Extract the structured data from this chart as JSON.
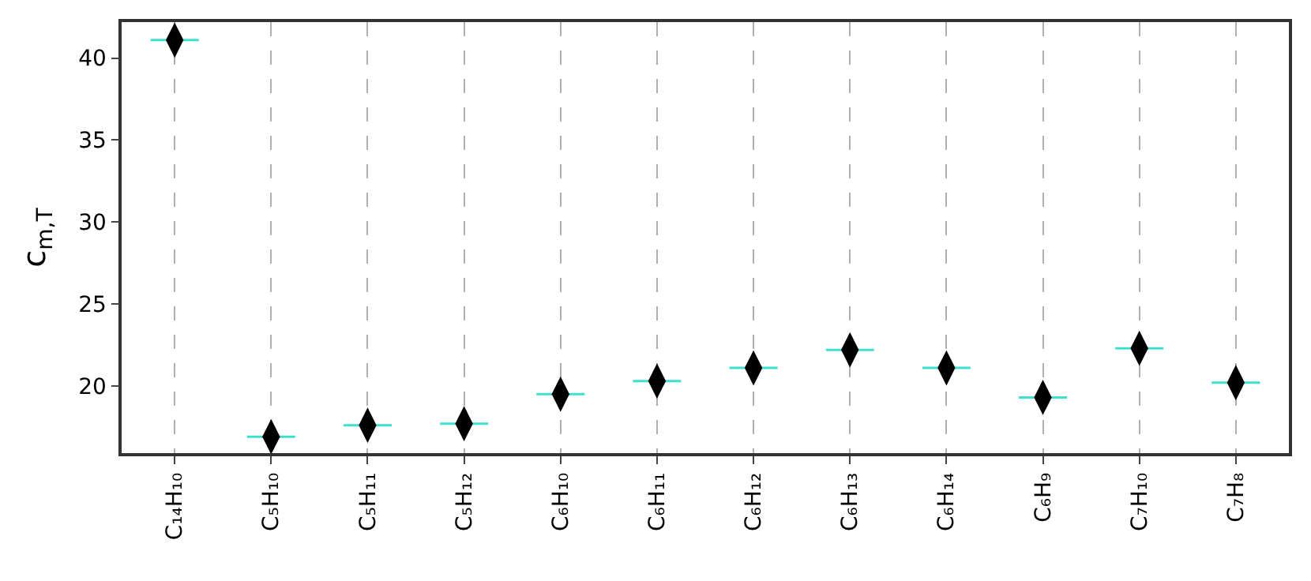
{
  "chart_data": {
    "type": "box",
    "ylabel": "c$_{m,T}$",
    "categories": [
      "C₁₄H₁₀",
      "C₅H₁₀",
      "C₅H₁₁",
      "C₅H₁₂",
      "C₆H₁₀",
      "C₆H₁₁",
      "C₆H₁₂",
      "C₆H₁₃",
      "C₆H₁₄",
      "C₆H₉",
      "C₇H₁₀",
      "C₇H₈"
    ],
    "series": [
      {
        "color": "#40e0d0",
        "boxes": [
          {
            "low": 41.1,
            "q1": 41.1,
            "median": 41.1,
            "q3": 41.1,
            "high": 41.1
          },
          {
            "low": 16.9,
            "q1": 16.9,
            "median": 16.9,
            "q3": 16.9,
            "high": 16.9
          },
          {
            "low": 17.6,
            "q1": 17.6,
            "median": 17.6,
            "q3": 17.6,
            "high": 17.6
          },
          {
            "low": 17.7,
            "q1": 17.7,
            "median": 17.7,
            "q3": 17.7,
            "high": 17.7
          },
          {
            "low": 19.5,
            "q1": 19.5,
            "median": 19.5,
            "q3": 19.5,
            "high": 19.5
          },
          {
            "low": 20.3,
            "q1": 20.3,
            "median": 20.3,
            "q3": 20.3,
            "high": 20.3
          },
          {
            "low": 21.1,
            "q1": 21.1,
            "median": 21.1,
            "q3": 21.1,
            "high": 21.1
          },
          {
            "low": 22.2,
            "q1": 22.2,
            "median": 22.2,
            "q3": 22.2,
            "high": 22.2
          },
          {
            "low": 21.1,
            "q1": 21.1,
            "median": 21.1,
            "q3": 21.1,
            "high": 21.1
          },
          {
            "low": 19.3,
            "q1": 19.3,
            "median": 19.3,
            "q3": 19.3,
            "high": 19.3
          },
          {
            "low": 22.3,
            "q1": 22.3,
            "median": 22.3,
            "q3": 22.3,
            "high": 22.3
          },
          {
            "low": 20.2,
            "q1": 20.2,
            "median": 20.2,
            "q3": 20.2,
            "high": 20.2
          }
        ]
      },
      {
        "type": "scatter",
        "color": "#000000",
        "x": [
          "C₁₄H₁₀",
          "C₅H₁₀",
          "C₅H₁₁",
          "C₅H₁₂",
          "C₆H₁₀",
          "C₆H₁₁",
          "C₆H₁₂",
          "C₆H₁₃",
          "C₆H₁₄",
          "C₆H₉",
          "C₇H₁₀",
          "C₇H₈"
        ],
        "values": [
          41.1,
          16.9,
          17.6,
          17.7,
          19.5,
          20.3,
          21.1,
          22.2,
          21.1,
          19.3,
          22.3,
          20.2
        ]
      }
    ],
    "marker": "diamond",
    "ylim": [
      15.9,
      42.2
    ],
    "yticks": [
      20,
      25,
      30,
      35,
      40
    ],
    "grid": "x"
  }
}
